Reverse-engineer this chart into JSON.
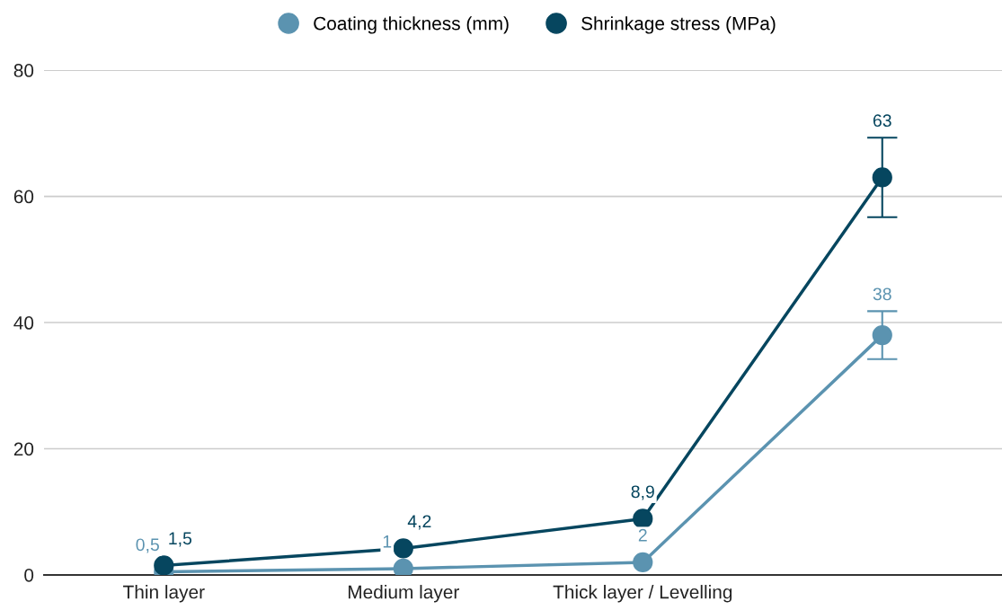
{
  "chart_data": {
    "type": "line",
    "categories": [
      "Thin layer",
      "Medium layer",
      "Thick layer / Levelling",
      null
    ],
    "series": [
      {
        "name": "Coating thickness (mm)",
        "color": "#5b93b0",
        "values": [
          0.5,
          1,
          2,
          38
        ],
        "value_labels": [
          "0,5",
          "1",
          "2",
          "38"
        ],
        "errors": [
          null,
          null,
          null,
          3.8
        ]
      },
      {
        "name": "Shrinkage stress (MPa)",
        "color": "#06465f",
        "values": [
          1.5,
          4.2,
          8.9,
          63
        ],
        "value_labels": [
          "1,5",
          "4,2",
          "8,9",
          "63"
        ],
        "errors": [
          null,
          null,
          null,
          6.3
        ]
      }
    ],
    "ylim": [
      0,
      80
    ],
    "yticks": [
      0,
      20,
      40,
      60,
      80
    ],
    "grid": "y",
    "legend": "top",
    "marker": "circle",
    "line_style": "solid"
  }
}
